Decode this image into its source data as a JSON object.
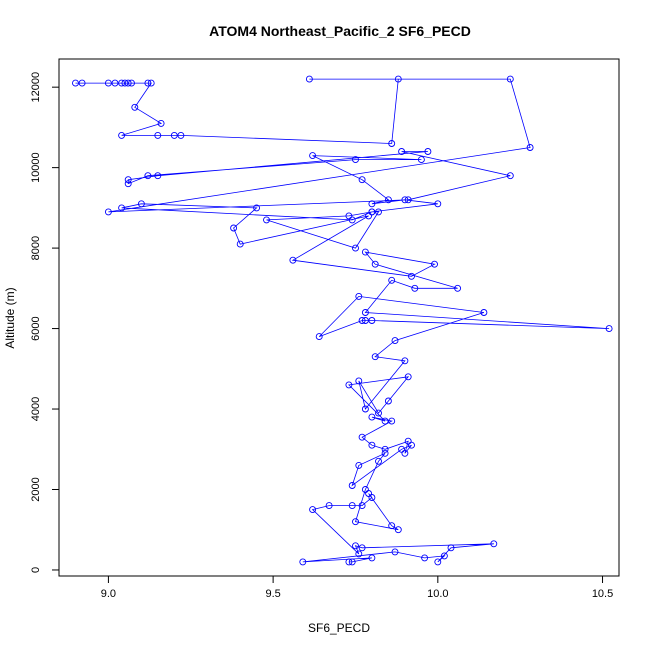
{
  "chart_data": {
    "type": "line",
    "title": "ATOM4 Northeast_Pacific_2 SF6_PECD",
    "xlabel": "SF6_PECD",
    "ylabel": "Altitude (m)",
    "xlim": [
      8.85,
      10.55
    ],
    "ylim": [
      -150,
      12700
    ],
    "xticks": [
      9.0,
      9.5,
      10.0,
      10.5
    ],
    "xtick_labels": [
      "9.0",
      "9.5",
      "10.0",
      "10.5"
    ],
    "yticks": [
      0,
      2000,
      4000,
      6000,
      8000,
      10000,
      12000
    ],
    "ytick_labels": [
      "0",
      "2000",
      "4000",
      "6000",
      "8000",
      "10000",
      "12000"
    ],
    "grid": false,
    "color": "#0000ff",
    "markers": "open-circle",
    "series": [
      {
        "x": [
          9.73,
          9.74,
          9.8,
          9.59,
          9.87,
          9.96,
          10.02,
          10.0,
          10.04,
          10.17,
          9.77,
          9.75,
          9.76,
          9.62,
          9.67,
          9.74,
          9.77,
          9.8,
          9.79,
          9.86,
          9.88,
          9.75,
          9.78,
          9.82,
          9.84,
          9.76,
          9.74,
          9.89,
          9.92,
          9.9,
          9.91,
          9.84,
          9.8,
          9.77,
          9.86,
          9.8,
          9.84,
          9.73,
          9.91,
          9.85,
          9.82,
          9.76,
          9.78,
          9.9,
          9.81,
          9.87,
          10.14,
          9.76,
          9.64,
          9.77,
          9.78,
          9.8,
          10.52,
          9.78,
          9.86,
          9.93,
          10.06,
          9.81,
          9.78,
          9.99,
          9.92,
          9.56,
          9.79,
          9.4,
          9.38,
          9.45,
          9.1,
          9.04,
          9.74,
          9.8,
          9.82,
          9.75,
          9.48,
          9.73,
          9.8,
          10.0,
          9.9,
          9.8,
          9.85,
          9.77,
          9.62,
          9.95,
          9.75,
          9.12,
          9.06,
          9.06,
          9.15,
          9.97,
          9.89,
          10.22,
          9.91,
          9.0,
          10.28,
          10.22,
          9.61,
          9.88,
          9.86,
          9.22,
          9.15,
          9.2,
          9.04,
          9.16,
          9.08,
          9.13,
          8.9,
          8.92,
          9.0,
          9.02,
          9.04,
          9.06,
          9.07,
          9.05,
          9.12
        ],
        "y": [
          200,
          200,
          300,
          200,
          450,
          300,
          350,
          200,
          550,
          650,
          550,
          600,
          400,
          1500,
          1600,
          1600,
          1600,
          1800,
          1900,
          1100,
          1000,
          1200,
          2000,
          2700,
          2900,
          2600,
          2100,
          3000,
          3100,
          2900,
          3200,
          3000,
          3100,
          3300,
          3700,
          3800,
          3700,
          4600,
          4800,
          4200,
          3900,
          4700,
          4000,
          5200,
          5300,
          5700,
          6400,
          6800,
          5800,
          6200,
          6200,
          6200,
          6000,
          6400,
          7200,
          7000,
          7000,
          7600,
          7900,
          7600,
          7300,
          7700,
          8800,
          8100,
          8500,
          9000,
          9100,
          9000,
          8700,
          8900,
          8900,
          8000,
          8700,
          8800,
          8900,
          9100,
          9200,
          9100,
          9200,
          9700,
          10300,
          10200,
          10200,
          9800,
          9600,
          9700,
          9800,
          10400,
          10400,
          9800,
          9200,
          8900,
          10500,
          12200,
          12200,
          12200,
          10600,
          10800,
          10800,
          10800,
          10800,
          11100,
          11500,
          12100,
          12100,
          12100,
          12100,
          12100,
          12100,
          12100,
          12100,
          12100,
          12100
        ]
      }
    ]
  }
}
